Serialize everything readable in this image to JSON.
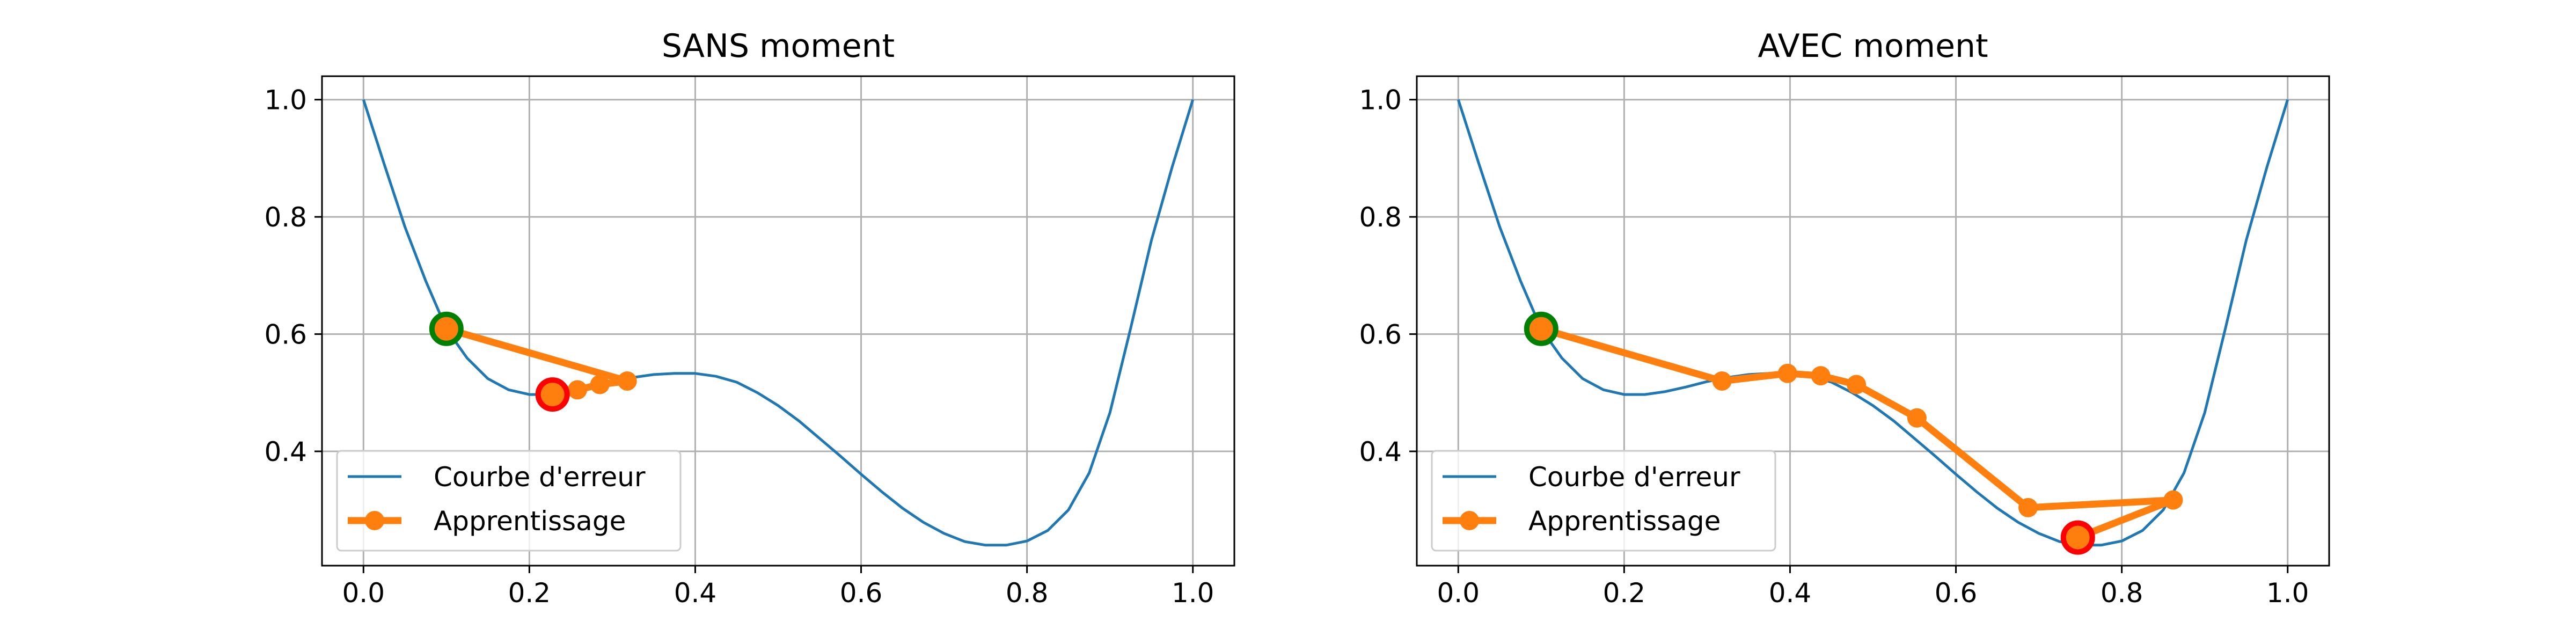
{
  "colors": {
    "curve": "#1f77b4",
    "path": "#ff7f0e",
    "start_edge": "#008000",
    "end_edge": "#ff0000",
    "grid": "#b0b0b0",
    "frame": "#000000"
  },
  "chart_data": [
    {
      "type": "line",
      "title": "SANS moment",
      "xlim": [
        -0.05,
        1.05
      ],
      "ylim": [
        0.205,
        1.04
      ],
      "xticks": [
        "0.0",
        "0.2",
        "0.4",
        "0.6",
        "0.8",
        "1.0"
      ],
      "yticks": [
        "0.4",
        "0.6",
        "0.8",
        "1.0"
      ],
      "grid": true,
      "legend_position": "lower-left",
      "series": [
        {
          "name": "Courbe d'erreur",
          "x": [
            0.0,
            0.025,
            0.05,
            0.075,
            0.1,
            0.125,
            0.15,
            0.175,
            0.2,
            0.225,
            0.25,
            0.275,
            0.3,
            0.325,
            0.35,
            0.375,
            0.4,
            0.425,
            0.45,
            0.475,
            0.5,
            0.525,
            0.55,
            0.575,
            0.6,
            0.625,
            0.65,
            0.675,
            0.7,
            0.725,
            0.75,
            0.775,
            0.8,
            0.825,
            0.85,
            0.875,
            0.9,
            0.925,
            0.95,
            0.975,
            1.0
          ],
          "y": [
            1.0,
            0.89,
            0.783,
            0.691,
            0.609,
            0.559,
            0.524,
            0.505,
            0.497,
            0.497,
            0.502,
            0.51,
            0.519,
            0.526,
            0.531,
            0.533,
            0.533,
            0.528,
            0.518,
            0.5,
            0.478,
            0.452,
            0.422,
            0.392,
            0.361,
            0.331,
            0.303,
            0.279,
            0.26,
            0.246,
            0.24,
            0.24,
            0.247,
            0.265,
            0.3,
            0.363,
            0.466,
            0.61,
            0.76,
            0.885,
            1.0
          ]
        },
        {
          "name": "Apprentissage",
          "x": [
            0.1,
            0.318,
            0.285,
            0.258,
            0.238,
            0.228
          ],
          "y": [
            0.609,
            0.52,
            0.514,
            0.505,
            0.5,
            0.497
          ]
        }
      ],
      "start_point": {
        "x": 0.1,
        "y": 0.609
      },
      "end_point": {
        "x": 0.228,
        "y": 0.497
      }
    },
    {
      "type": "line",
      "title": "AVEC moment",
      "xlim": [
        -0.05,
        1.05
      ],
      "ylim": [
        0.205,
        1.04
      ],
      "xticks": [
        "0.0",
        "0.2",
        "0.4",
        "0.6",
        "0.8",
        "1.0"
      ],
      "yticks": [
        "0.4",
        "0.6",
        "0.8",
        "1.0"
      ],
      "grid": true,
      "legend_position": "lower-left",
      "series": [
        {
          "name": "Courbe d'erreur",
          "x": [
            0.0,
            0.025,
            0.05,
            0.075,
            0.1,
            0.125,
            0.15,
            0.175,
            0.2,
            0.225,
            0.25,
            0.275,
            0.3,
            0.325,
            0.35,
            0.375,
            0.4,
            0.425,
            0.45,
            0.475,
            0.5,
            0.525,
            0.55,
            0.575,
            0.6,
            0.625,
            0.65,
            0.675,
            0.7,
            0.725,
            0.75,
            0.775,
            0.8,
            0.825,
            0.85,
            0.875,
            0.9,
            0.925,
            0.95,
            0.975,
            1.0
          ],
          "y": [
            1.0,
            0.89,
            0.783,
            0.691,
            0.609,
            0.559,
            0.524,
            0.505,
            0.497,
            0.497,
            0.502,
            0.51,
            0.519,
            0.526,
            0.531,
            0.533,
            0.533,
            0.528,
            0.518,
            0.5,
            0.478,
            0.452,
            0.422,
            0.392,
            0.361,
            0.331,
            0.303,
            0.279,
            0.26,
            0.246,
            0.24,
            0.24,
            0.247,
            0.265,
            0.3,
            0.363,
            0.466,
            0.61,
            0.76,
            0.885,
            1.0
          ]
        },
        {
          "name": "Apprentissage",
          "x": [
            0.1,
            0.318,
            0.397,
            0.437,
            0.48,
            0.553,
            0.687,
            0.862,
            0.747
          ],
          "y": [
            0.609,
            0.52,
            0.533,
            0.529,
            0.514,
            0.457,
            0.304,
            0.317,
            0.253
          ]
        }
      ],
      "start_point": {
        "x": 0.1,
        "y": 0.609
      },
      "end_point": {
        "x": 0.747,
        "y": 0.253
      }
    }
  ]
}
